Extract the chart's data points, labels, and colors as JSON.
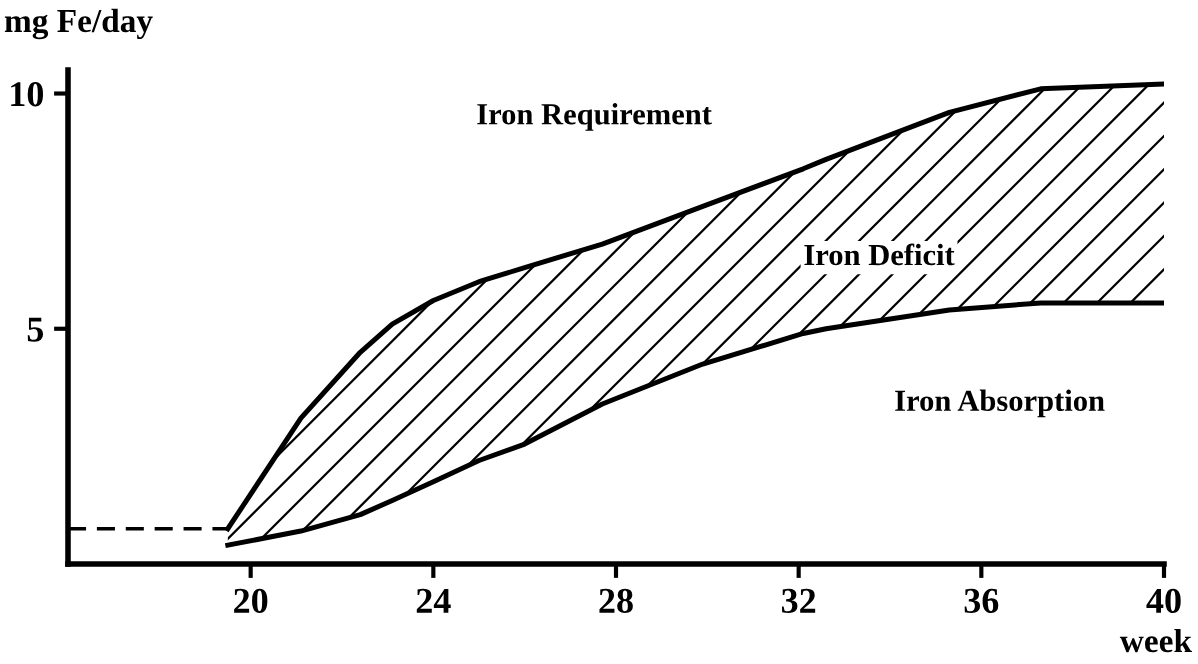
{
  "chart_data": {
    "type": "line",
    "xlabel": "week",
    "ylabel": "mg Fe/day",
    "x": [
      19.5,
      21.1,
      22.4,
      23.1,
      24,
      25,
      26,
      27.7,
      29.9,
      32.1,
      32.6,
      35.3,
      37.3,
      40
    ],
    "series": [
      {
        "color": "#000000",
        "values": [
          0.75,
          3.1,
          4.5,
          5.1,
          5.6,
          6.0,
          6.3,
          6.8,
          7.6,
          8.4,
          8.6,
          9.6,
          10.1,
          10.2
        ]
      },
      {
        "color": "#000000",
        "values": [
          0.4,
          0.7,
          1.05,
          1.35,
          1.75,
          2.2,
          2.55,
          3.4,
          4.25,
          4.9,
          5.0,
          5.4,
          5.55,
          5.55
        ],
        "upper": [
          0.75,
          3.1,
          4.5,
          5.1,
          5.6,
          6.0,
          6.3,
          6.8,
          7.6,
          8.4,
          8.6,
          9.6,
          10.1,
          10.2
        ],
        "lower": [
          0.4,
          0.7,
          1.05,
          1.35,
          1.75,
          2.2,
          2.55,
          3.4,
          4.25,
          4.9,
          5.0,
          5.4,
          5.55,
          5.55
        ]
      },
      {
        "color": "#000000",
        "line_style": "dashed",
        "x": [
          16,
          19.5
        ],
        "values": [
          0.75,
          0.75
        ]
      }
    ],
    "annotations": [
      "Iron Requirement",
      "Iron Deficit",
      "Iron Absorption"
    ],
    "xlim": [
      16,
      40
    ],
    "ylim": [
      0,
      10.5
    ],
    "xticks": [
      20,
      24,
      28,
      32,
      36,
      40
    ],
    "yticks": [
      5,
      10
    ],
    "grid": false,
    "legend": false,
    "marker": "none",
    "line_style": "solid"
  }
}
